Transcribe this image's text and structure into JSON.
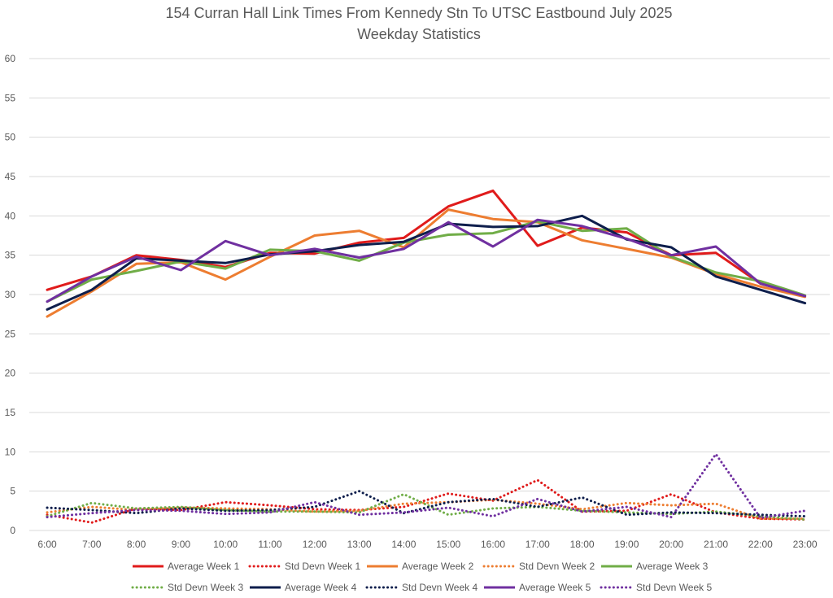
{
  "chart_data": {
    "type": "line",
    "title": "154 Curran Hall Link Times From Kennedy Stn To UTSC Eastbound July 2025",
    "subtitle": "Weekday Statistics",
    "xlabel": "",
    "ylabel": "",
    "ylim": [
      0,
      60
    ],
    "yticks": [
      "0",
      "5",
      "10",
      "15",
      "20",
      "25",
      "30",
      "35",
      "40",
      "45",
      "50",
      "55",
      "60"
    ],
    "grid": true,
    "legend_position": "bottom",
    "categories": [
      "6:00",
      "7:00",
      "8:00",
      "9:00",
      "10:00",
      "11:00",
      "12:00",
      "13:00",
      "14:00",
      "15:00",
      "16:00",
      "17:00",
      "18:00",
      "19:00",
      "20:00",
      "21:00",
      "22:00",
      "23:00"
    ],
    "series": [
      {
        "name": "Average Week 1",
        "color": "#e01b1b",
        "style": "solid",
        "values": [
          30.6,
          32.3,
          35.0,
          34.4,
          33.5,
          35.3,
          35.2,
          36.6,
          37.2,
          41.2,
          43.2,
          36.2,
          38.5,
          37.9,
          35.0,
          35.3,
          31.4,
          29.8
        ]
      },
      {
        "name": "Std Devn Week 1",
        "color": "#e01b1b",
        "style": "dotted",
        "values": [
          2.0,
          1.0,
          2.8,
          2.6,
          3.6,
          3.2,
          2.7,
          2.6,
          3.0,
          4.7,
          3.8,
          6.4,
          2.4,
          2.5,
          4.6,
          2.3,
          1.5,
          1.4
        ]
      },
      {
        "name": "Average Week 2",
        "color": "#ed7d31",
        "style": "solid",
        "values": [
          27.2,
          30.4,
          33.9,
          34.1,
          31.9,
          34.8,
          37.5,
          38.1,
          36.0,
          40.8,
          39.6,
          39.2,
          36.9,
          35.8,
          34.7,
          32.6,
          31.0,
          29.7
        ]
      },
      {
        "name": "Std Devn Week 2",
        "color": "#ed7d31",
        "style": "dotted",
        "values": [
          2.3,
          3.0,
          2.6,
          2.9,
          2.8,
          2.7,
          2.4,
          2.5,
          3.4,
          3.6,
          3.9,
          3.4,
          2.7,
          3.5,
          3.2,
          3.4,
          1.5,
          1.5
        ]
      },
      {
        "name": "Average Week 3",
        "color": "#70ad47",
        "style": "solid",
        "values": [
          29.1,
          31.9,
          33.0,
          34.2,
          33.3,
          35.7,
          35.5,
          34.3,
          36.6,
          37.6,
          37.8,
          39.3,
          38.1,
          38.4,
          34.8,
          32.8,
          31.7,
          29.9
        ]
      },
      {
        "name": "Std Devn Week 3",
        "color": "#70ad47",
        "style": "dotted",
        "values": [
          1.8,
          3.5,
          2.8,
          3.0,
          2.6,
          2.4,
          2.4,
          2.3,
          4.6,
          2.0,
          2.8,
          3.0,
          2.5,
          2.3,
          2.1,
          2.4,
          1.8,
          1.4
        ]
      },
      {
        "name": "Average Week 4",
        "color": "#0e1e4c",
        "style": "solid",
        "values": [
          28.1,
          30.6,
          34.6,
          34.3,
          34.0,
          35.1,
          35.5,
          36.3,
          36.7,
          39.0,
          38.6,
          38.7,
          40.0,
          37.0,
          36.0,
          32.3,
          30.6,
          28.9
        ]
      },
      {
        "name": "Std Devn Week 4",
        "color": "#0e1e4c",
        "style": "dotted",
        "values": [
          2.9,
          2.6,
          2.2,
          2.8,
          2.5,
          2.6,
          3.0,
          5.0,
          2.2,
          3.6,
          4.0,
          3.0,
          4.2,
          2.0,
          2.3,
          2.2,
          2.0,
          1.8
        ]
      },
      {
        "name": "Average Week 5",
        "color": "#7030a0",
        "style": "solid",
        "values": [
          29.1,
          32.3,
          34.8,
          33.1,
          36.8,
          35.0,
          35.8,
          34.7,
          35.8,
          39.2,
          36.1,
          39.5,
          38.7,
          37.1,
          35.0,
          36.1,
          31.4,
          29.8
        ]
      },
      {
        "name": "Std Devn Week 5",
        "color": "#7030a0",
        "style": "dotted",
        "values": [
          1.7,
          2.2,
          2.6,
          2.5,
          2.1,
          2.3,
          3.6,
          2.0,
          2.3,
          2.9,
          1.8,
          4.0,
          2.4,
          3.0,
          1.7,
          9.7,
          1.6,
          2.5
        ]
      }
    ]
  }
}
